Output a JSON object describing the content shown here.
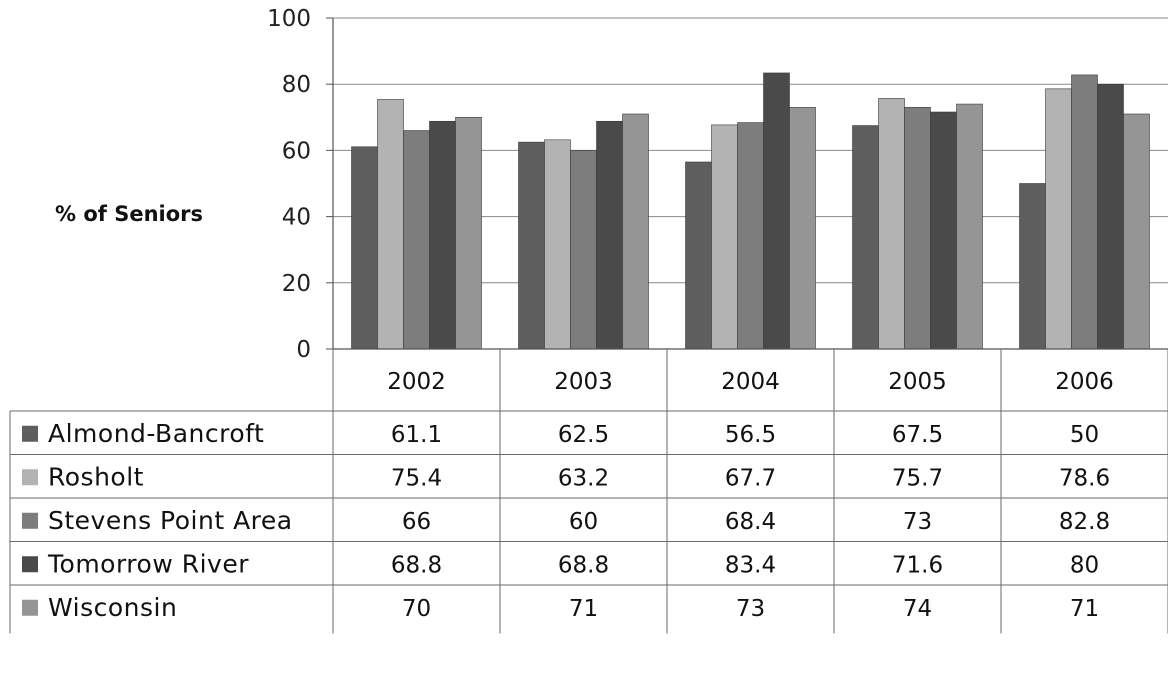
{
  "chart_data": {
    "type": "bar",
    "title": "",
    "xlabel": "",
    "ylabel": "% of Seniors",
    "ylim": [
      0,
      100
    ],
    "yticks": [
      0,
      20,
      40,
      60,
      80,
      100
    ],
    "categories": [
      "2002",
      "2003",
      "2004",
      "2005",
      "2006"
    ],
    "grid": true,
    "legend": "data-table-below",
    "series": [
      {
        "name": "Almond-Bancroft",
        "color": "#5e5e5e",
        "values": [
          61.1,
          62.5,
          56.5,
          67.5,
          50
        ],
        "labels": [
          "61.1",
          "62.5",
          "56.5",
          "67.5",
          "50"
        ]
      },
      {
        "name": "Rosholt",
        "color": "#b3b3b3",
        "values": [
          75.4,
          63.2,
          67.7,
          75.7,
          78.6
        ],
        "labels": [
          "75.4",
          "63.2",
          "67.7",
          "75.7",
          "78.6"
        ]
      },
      {
        "name": "Stevens Point Area",
        "color": "#7d7d7d",
        "values": [
          66,
          60,
          68.4,
          73,
          82.8
        ],
        "labels": [
          "66",
          "60",
          "68.4",
          "73",
          "82.8"
        ]
      },
      {
        "name": "Tomorrow River",
        "color": "#4a4a4a",
        "values": [
          68.8,
          68.8,
          83.4,
          71.6,
          80
        ],
        "labels": [
          "68.8",
          "68.8",
          "83.4",
          "71.6",
          "80"
        ]
      },
      {
        "name": "Wisconsin",
        "color": "#959595",
        "values": [
          70,
          71,
          73,
          74,
          71
        ],
        "labels": [
          "70",
          "71",
          "73",
          "74",
          "71"
        ]
      }
    ]
  }
}
